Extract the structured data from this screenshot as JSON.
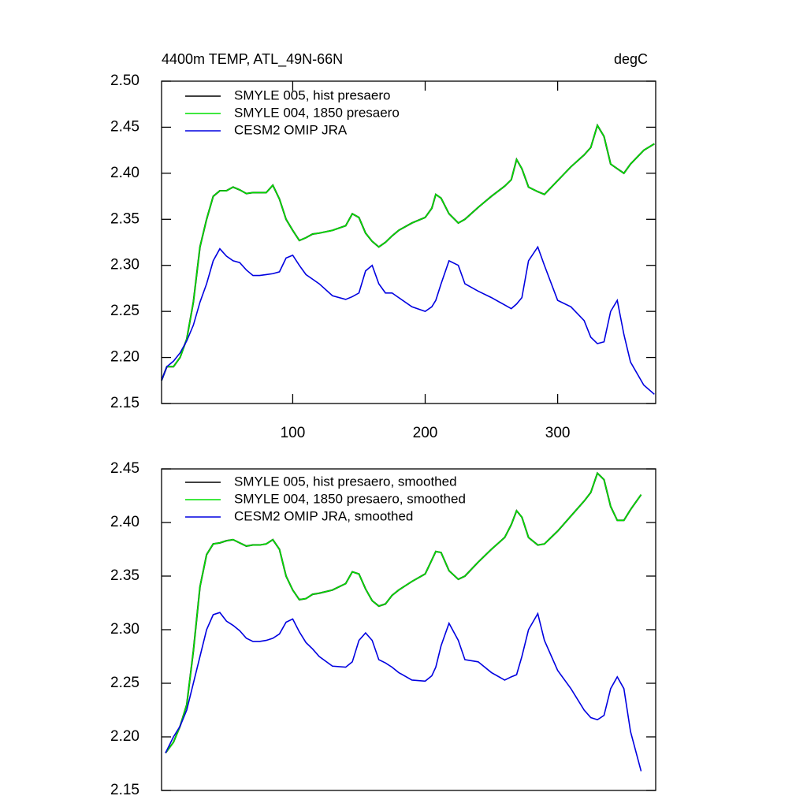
{
  "chart_data": [
    {
      "type": "line",
      "title": "4400m TEMP, ATL_49N-66N",
      "units_label": "degC",
      "x": [
        1,
        5,
        10,
        15,
        20,
        25,
        30,
        35,
        40,
        45,
        50,
        55,
        60,
        65,
        70,
        75,
        80,
        85,
        90,
        95,
        100,
        105,
        110,
        115,
        120,
        130,
        140,
        145,
        150,
        155,
        160,
        165,
        170,
        175,
        180,
        190,
        200,
        205,
        208,
        212,
        218,
        225,
        230,
        240,
        250,
        260,
        265,
        269,
        273,
        278,
        285,
        290,
        300,
        310,
        320,
        325,
        330,
        335,
        340,
        345,
        350,
        355,
        365,
        373
      ],
      "xlim": [
        1,
        374
      ],
      "xticks": [
        100,
        200,
        300
      ],
      "ylim": [
        2.15,
        2.5
      ],
      "yticks": [
        {
          "value": 2.15,
          "label": "2.15"
        },
        {
          "value": 2.2,
          "label": "2.20"
        },
        {
          "value": 2.25,
          "label": "2.25"
        },
        {
          "value": 2.3,
          "label": "2.30"
        },
        {
          "value": 2.35,
          "label": "2.35"
        },
        {
          "value": 2.4,
          "label": "2.40"
        },
        {
          "value": 2.45,
          "label": "2.45"
        },
        {
          "value": 2.5,
          "label": "2.50"
        }
      ],
      "legend": "upper left",
      "series": [
        {
          "name": "SMYLE 005, hist presaero",
          "color": "#000000",
          "values": [
            2.175,
            2.19,
            2.19,
            2.2,
            2.22,
            2.26,
            2.32,
            2.35,
            2.375,
            2.381,
            2.381,
            2.385,
            2.382,
            2.378,
            2.379,
            2.379,
            2.379,
            2.387,
            2.372,
            2.35,
            2.338,
            2.327,
            2.33,
            2.334,
            2.335,
            2.338,
            2.343,
            2.356,
            2.352,
            2.335,
            2.326,
            2.32,
            2.325,
            2.332,
            2.338,
            2.346,
            2.352,
            2.362,
            2.377,
            2.373,
            2.356,
            2.346,
            2.35,
            2.363,
            2.375,
            2.386,
            2.393,
            2.415,
            2.405,
            2.385,
            2.38,
            2.377,
            2.392,
            2.407,
            2.42,
            2.428,
            2.452,
            2.44,
            2.41,
            2.405,
            2.4,
            2.41,
            2.425,
            2.432
          ]
        },
        {
          "name": "SMYLE 004, 1850 presaero",
          "color": "#00e000",
          "values": [
            2.175,
            2.19,
            2.19,
            2.2,
            2.22,
            2.26,
            2.32,
            2.35,
            2.375,
            2.381,
            2.381,
            2.385,
            2.382,
            2.378,
            2.379,
            2.379,
            2.379,
            2.387,
            2.372,
            2.35,
            2.338,
            2.327,
            2.33,
            2.334,
            2.335,
            2.338,
            2.343,
            2.356,
            2.352,
            2.335,
            2.326,
            2.32,
            2.325,
            2.332,
            2.338,
            2.346,
            2.352,
            2.362,
            2.377,
            2.373,
            2.356,
            2.346,
            2.35,
            2.363,
            2.375,
            2.386,
            2.393,
            2.415,
            2.405,
            2.385,
            2.38,
            2.377,
            2.392,
            2.407,
            2.42,
            2.428,
            2.452,
            2.44,
            2.41,
            2.405,
            2.4,
            2.41,
            2.425,
            2.432
          ]
        },
        {
          "name": "CESM2 OMIP JRA",
          "color": "#0000e0",
          "values": [
            2.175,
            2.19,
            2.196,
            2.205,
            2.218,
            2.235,
            2.26,
            2.28,
            2.305,
            2.318,
            2.31,
            2.305,
            2.303,
            2.295,
            2.289,
            2.289,
            2.29,
            2.291,
            2.293,
            2.308,
            2.311,
            2.3,
            2.29,
            2.285,
            2.28,
            2.267,
            2.263,
            2.266,
            2.27,
            2.294,
            2.3,
            2.28,
            2.27,
            2.27,
            2.265,
            2.255,
            2.25,
            2.255,
            2.262,
            2.28,
            2.305,
            2.3,
            2.28,
            2.272,
            2.265,
            2.257,
            2.253,
            2.258,
            2.265,
            2.305,
            2.32,
            2.3,
            2.262,
            2.255,
            2.24,
            2.222,
            2.215,
            2.217,
            2.25,
            2.262,
            2.225,
            2.195,
            2.17,
            2.16
          ]
        }
      ]
    },
    {
      "type": "line",
      "x": [
        4,
        10,
        15,
        20,
        25,
        30,
        35,
        40,
        45,
        50,
        55,
        60,
        65,
        70,
        75,
        80,
        85,
        90,
        95,
        100,
        105,
        110,
        115,
        120,
        130,
        140,
        145,
        150,
        155,
        160,
        165,
        170,
        175,
        180,
        190,
        200,
        205,
        208,
        212,
        218,
        225,
        230,
        240,
        250,
        260,
        265,
        269,
        273,
        278,
        285,
        290,
        300,
        310,
        320,
        325,
        330,
        335,
        340,
        345,
        350,
        355,
        363
      ],
      "xlim": [
        1,
        374
      ],
      "ylim": [
        2.15,
        2.45
      ],
      "yticks": [
        {
          "value": 2.15,
          "label": "2.15"
        },
        {
          "value": 2.2,
          "label": "2.20"
        },
        {
          "value": 2.25,
          "label": "2.25"
        },
        {
          "value": 2.3,
          "label": "2.30"
        },
        {
          "value": 2.35,
          "label": "2.35"
        },
        {
          "value": 2.4,
          "label": "2.40"
        },
        {
          "value": 2.45,
          "label": "2.45"
        }
      ],
      "legend": "upper left",
      "series": [
        {
          "name": "SMYLE 005, hist presaero, smoothed",
          "color": "#000000",
          "values": [
            2.185,
            2.195,
            2.21,
            2.23,
            2.28,
            2.34,
            2.37,
            2.38,
            2.381,
            2.383,
            2.384,
            2.381,
            2.378,
            2.379,
            2.379,
            2.38,
            2.384,
            2.375,
            2.35,
            2.337,
            2.328,
            2.329,
            2.333,
            2.334,
            2.337,
            2.343,
            2.354,
            2.352,
            2.338,
            2.327,
            2.322,
            2.324,
            2.332,
            2.337,
            2.345,
            2.352,
            2.365,
            2.373,
            2.372,
            2.355,
            2.347,
            2.35,
            2.363,
            2.375,
            2.386,
            2.398,
            2.411,
            2.405,
            2.386,
            2.379,
            2.38,
            2.392,
            2.406,
            2.42,
            2.428,
            2.446,
            2.44,
            2.415,
            2.402,
            2.402,
            2.412,
            2.426
          ]
        },
        {
          "name": "SMYLE 004, 1850 presaero, smoothed",
          "color": "#00e000",
          "values": [
            2.185,
            2.195,
            2.21,
            2.23,
            2.28,
            2.34,
            2.37,
            2.38,
            2.381,
            2.383,
            2.384,
            2.381,
            2.378,
            2.379,
            2.379,
            2.38,
            2.384,
            2.375,
            2.35,
            2.337,
            2.328,
            2.329,
            2.333,
            2.334,
            2.337,
            2.343,
            2.354,
            2.352,
            2.338,
            2.327,
            2.322,
            2.324,
            2.332,
            2.337,
            2.345,
            2.352,
            2.365,
            2.373,
            2.372,
            2.355,
            2.347,
            2.35,
            2.363,
            2.375,
            2.386,
            2.398,
            2.411,
            2.405,
            2.386,
            2.379,
            2.38,
            2.392,
            2.406,
            2.42,
            2.428,
            2.446,
            2.44,
            2.415,
            2.402,
            2.402,
            2.412,
            2.426
          ]
        },
        {
          "name": "CESM2 OMIP JRA, smoothed",
          "color": "#0000e0",
          "values": [
            2.185,
            2.2,
            2.21,
            2.225,
            2.25,
            2.275,
            2.3,
            2.314,
            2.316,
            2.308,
            2.304,
            2.299,
            2.292,
            2.289,
            2.289,
            2.29,
            2.292,
            2.296,
            2.307,
            2.31,
            2.298,
            2.288,
            2.282,
            2.275,
            2.266,
            2.265,
            2.27,
            2.29,
            2.297,
            2.29,
            2.272,
            2.269,
            2.265,
            2.26,
            2.253,
            2.252,
            2.257,
            2.265,
            2.285,
            2.306,
            2.29,
            2.272,
            2.27,
            2.26,
            2.253,
            2.256,
            2.258,
            2.275,
            2.3,
            2.315,
            2.29,
            2.262,
            2.245,
            2.225,
            2.218,
            2.216,
            2.22,
            2.245,
            2.256,
            2.245,
            2.205,
            2.168
          ]
        }
      ]
    }
  ]
}
